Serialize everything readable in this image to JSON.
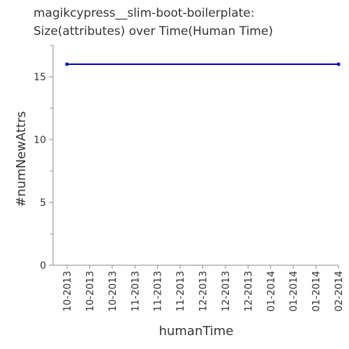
{
  "chart_data": {
    "type": "line",
    "title": [
      "magikcypress__slim-boot-boilerplate:",
      "Size(attributes) over Time(Human Time)"
    ],
    "xlabel": "humanTime",
    "ylabel": "#numNewAttrs",
    "ylim": [
      0,
      17.5
    ],
    "yticks": [
      0,
      5,
      10,
      15
    ],
    "ytick_labels": [
      "0",
      "5",
      "10",
      "15"
    ],
    "categories": [
      "10-2013",
      "10-2013",
      "10-2013",
      "11-2013",
      "11-2013",
      "11-2013",
      "12-2013",
      "12-2013",
      "12-2013",
      "01-2014",
      "01-2014",
      "01-2014",
      "02-2014"
    ],
    "series": [
      {
        "color": "#0000cc",
        "points": [
          {
            "x": "10-2013",
            "y": 16
          },
          {
            "x": "02-2014",
            "y": 16
          }
        ]
      }
    ],
    "grid": false,
    "legend": "none"
  }
}
